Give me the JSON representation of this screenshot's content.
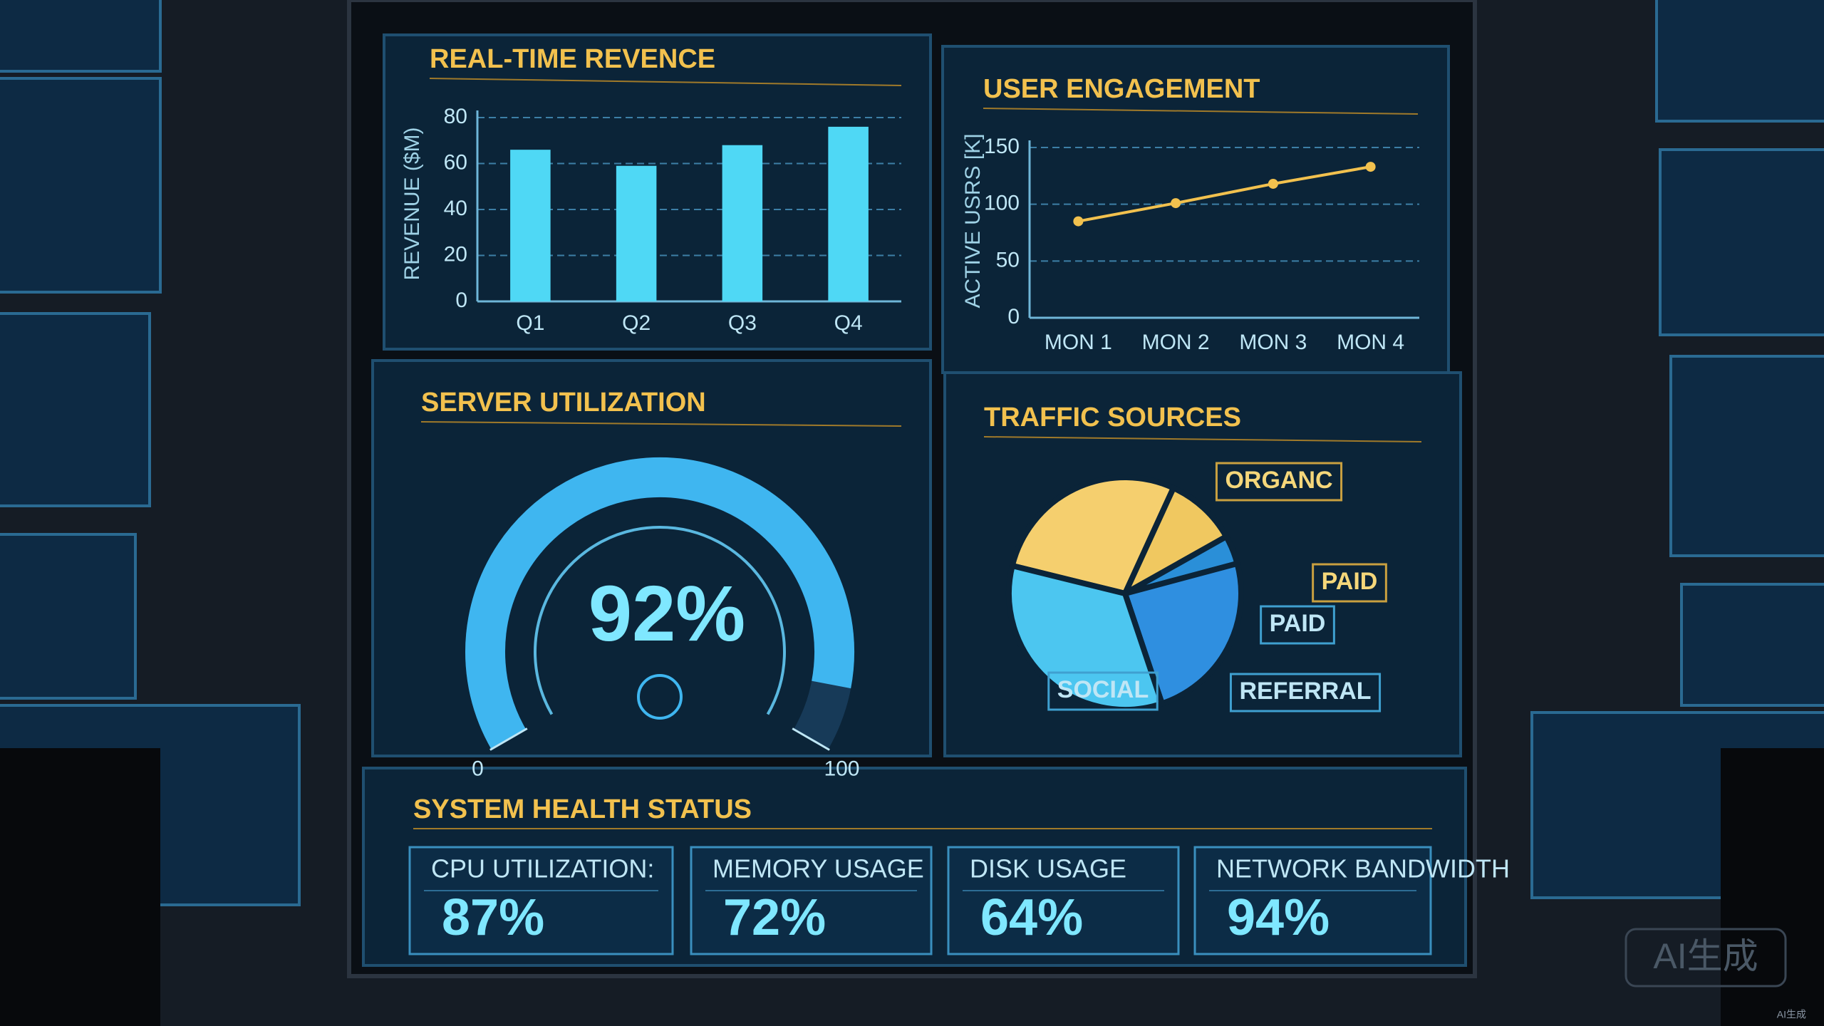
{
  "chart_data": [
    {
      "type": "bar",
      "title": "REAL-TIME REVENCE",
      "y_label": "REVENUE ($M)",
      "categories": [
        "Q1",
        "Q2",
        "Q3",
        "Q4"
      ],
      "values": [
        66,
        59,
        68,
        76
      ],
      "color": "#4fd8f5",
      "ylim": [
        0,
        80
      ],
      "yticks": [
        0,
        20,
        40,
        60,
        80
      ],
      "grid": true
    },
    {
      "type": "line",
      "title": "USER ENGAGEMENT",
      "y_label": "ACTIVE USRS [K]",
      "categories": [
        "MON 1",
        "MON 2",
        "MON 3",
        "MON 4"
      ],
      "values": [
        85,
        101,
        118,
        133
      ],
      "color": "#f2c14e",
      "ylim": [
        0,
        150
      ],
      "yticks": [
        0,
        50,
        100,
        150
      ],
      "grid": true
    },
    {
      "type": "gauge",
      "title": "SERVER UTILIZATION",
      "value": 92,
      "value_label": "92%",
      "ylim": [
        0,
        100
      ],
      "yticks": [
        0,
        100
      ],
      "color": "#3fb6f0"
    },
    {
      "type": "pie",
      "title": "TRAFFIC SOURCES",
      "categories": [
        "ORGANC",
        "PAID",
        "PAID",
        "REFERRAL",
        "SOCIAL"
      ],
      "values": [
        28,
        10,
        4,
        24,
        34
      ],
      "colors": [
        "#f5cf6e",
        "#f0c860",
        "#2a8fd8",
        "#2f8fe0",
        "#4cc6f0"
      ]
    }
  ],
  "health": {
    "title": "SYSTEM HEALTH STATUS",
    "items": [
      {
        "label": "CPU UTILIZATION:",
        "value": "87%"
      },
      {
        "label": "MEMORY USAGE",
        "value": "72%"
      },
      {
        "label": "DISK USAGE",
        "value": "64%"
      },
      {
        "label": "NETWORK BANDWIDTH",
        "value": "94%"
      }
    ]
  },
  "watermark": "AI生成"
}
